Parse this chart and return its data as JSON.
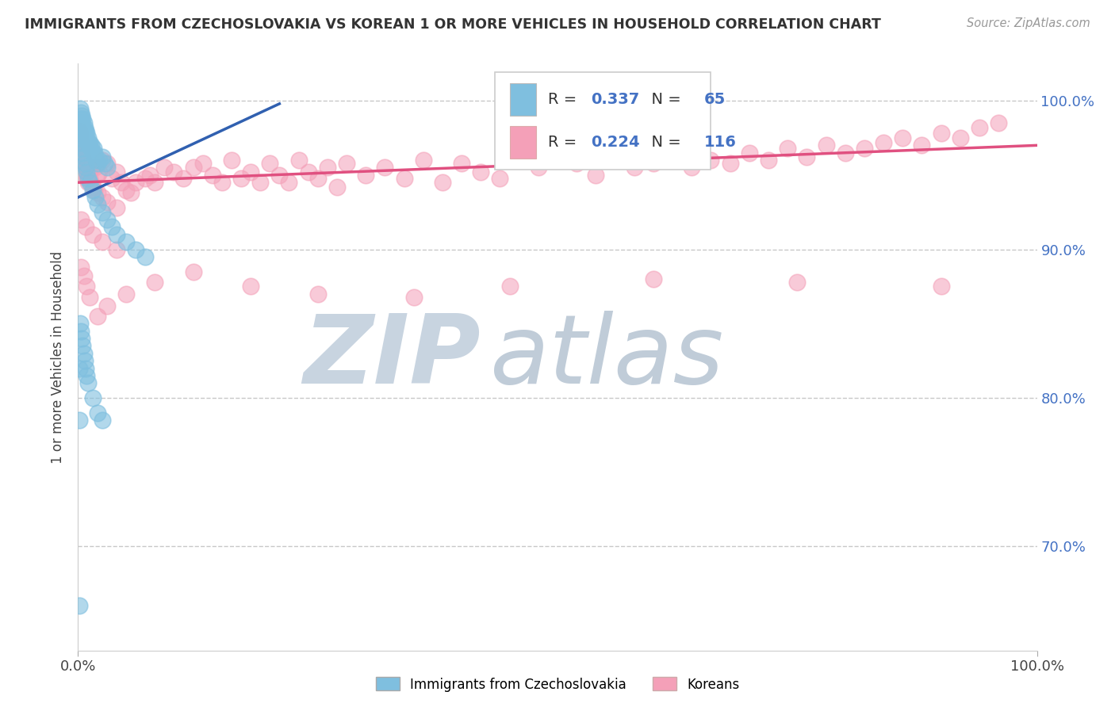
{
  "title": "IMMIGRANTS FROM CZECHOSLOVAKIA VS KOREAN 1 OR MORE VEHICLES IN HOUSEHOLD CORRELATION CHART",
  "source": "Source: ZipAtlas.com",
  "ylabel": "1 or more Vehicles in Household",
  "xlim": [
    0.0,
    1.0
  ],
  "ylim": [
    0.63,
    1.025
  ],
  "yticks": [
    0.7,
    0.8,
    0.9,
    1.0
  ],
  "ytick_labels": [
    "70.0%",
    "80.0%",
    "90.0%",
    "100.0%"
  ],
  "xticks": [
    0.0,
    1.0
  ],
  "xtick_labels": [
    "0.0%",
    "100.0%"
  ],
  "legend_labels": [
    "Immigrants from Czechoslovakia",
    "Koreans"
  ],
  "blue_color": "#7fbfdf",
  "pink_color": "#f4a0b8",
  "blue_line_color": "#3060b0",
  "pink_line_color": "#e05080",
  "blue_R": 0.337,
  "blue_N": 65,
  "pink_R": 0.224,
  "pink_N": 116,
  "watermark_zip": "ZIP",
  "watermark_atlas": "atlas",
  "watermark_color_zip": "#c8d4e0",
  "watermark_color_atlas": "#c0ccd8",
  "grid_color": "#c8c8c8",
  "background_color": "#ffffff",
  "blue_scatter_x": [
    0.002,
    0.003,
    0.003,
    0.004,
    0.004,
    0.005,
    0.005,
    0.006,
    0.006,
    0.007,
    0.007,
    0.008,
    0.008,
    0.009,
    0.01,
    0.01,
    0.011,
    0.012,
    0.013,
    0.014,
    0.015,
    0.016,
    0.017,
    0.018,
    0.019,
    0.02,
    0.022,
    0.025,
    0.028,
    0.03,
    0.002,
    0.003,
    0.004,
    0.005,
    0.006,
    0.007,
    0.008,
    0.009,
    0.01,
    0.012,
    0.015,
    0.018,
    0.02,
    0.025,
    0.03,
    0.035,
    0.04,
    0.05,
    0.06,
    0.07,
    0.002,
    0.003,
    0.004,
    0.005,
    0.006,
    0.007,
    0.008,
    0.009,
    0.01,
    0.015,
    0.02,
    0.025,
    0.001,
    0.001,
    0.001
  ],
  "blue_scatter_y": [
    0.995,
    0.992,
    0.988,
    0.99,
    0.985,
    0.988,
    0.982,
    0.985,
    0.98,
    0.982,
    0.978,
    0.98,
    0.975,
    0.978,
    0.975,
    0.972,
    0.97,
    0.972,
    0.968,
    0.97,
    0.965,
    0.968,
    0.965,
    0.962,
    0.96,
    0.958,
    0.96,
    0.962,
    0.958,
    0.955,
    0.975,
    0.972,
    0.968,
    0.965,
    0.962,
    0.958,
    0.955,
    0.952,
    0.948,
    0.945,
    0.94,
    0.935,
    0.93,
    0.925,
    0.92,
    0.915,
    0.91,
    0.905,
    0.9,
    0.895,
    0.85,
    0.845,
    0.84,
    0.835,
    0.83,
    0.825,
    0.82,
    0.815,
    0.81,
    0.8,
    0.79,
    0.785,
    0.82,
    0.785,
    0.66
  ],
  "pink_scatter_x": [
    0.001,
    0.002,
    0.002,
    0.003,
    0.003,
    0.004,
    0.004,
    0.005,
    0.005,
    0.006,
    0.006,
    0.007,
    0.007,
    0.008,
    0.008,
    0.009,
    0.01,
    0.01,
    0.011,
    0.012,
    0.013,
    0.015,
    0.015,
    0.017,
    0.018,
    0.02,
    0.02,
    0.022,
    0.025,
    0.025,
    0.03,
    0.03,
    0.035,
    0.04,
    0.04,
    0.045,
    0.05,
    0.055,
    0.06,
    0.07,
    0.075,
    0.08,
    0.09,
    0.1,
    0.11,
    0.12,
    0.13,
    0.14,
    0.15,
    0.16,
    0.17,
    0.18,
    0.19,
    0.2,
    0.21,
    0.22,
    0.23,
    0.24,
    0.25,
    0.26,
    0.27,
    0.28,
    0.3,
    0.32,
    0.34,
    0.36,
    0.38,
    0.4,
    0.42,
    0.44,
    0.46,
    0.48,
    0.5,
    0.52,
    0.54,
    0.56,
    0.58,
    0.6,
    0.62,
    0.64,
    0.66,
    0.68,
    0.7,
    0.72,
    0.74,
    0.76,
    0.78,
    0.8,
    0.82,
    0.84,
    0.86,
    0.88,
    0.9,
    0.92,
    0.94,
    0.96,
    0.003,
    0.006,
    0.009,
    0.012,
    0.02,
    0.03,
    0.05,
    0.08,
    0.12,
    0.18,
    0.25,
    0.35,
    0.45,
    0.6,
    0.75,
    0.9,
    0.003,
    0.008,
    0.015,
    0.025,
    0.04
  ],
  "pink_scatter_y": [
    0.98,
    0.978,
    0.975,
    0.972,
    0.97,
    0.968,
    0.965,
    0.962,
    0.96,
    0.958,
    0.955,
    0.958,
    0.952,
    0.95,
    0.955,
    0.948,
    0.95,
    0.945,
    0.952,
    0.948,
    0.945,
    0.955,
    0.942,
    0.94,
    0.955,
    0.95,
    0.938,
    0.952,
    0.96,
    0.935,
    0.958,
    0.932,
    0.948,
    0.952,
    0.928,
    0.945,
    0.94,
    0.938,
    0.945,
    0.948,
    0.95,
    0.945,
    0.955,
    0.952,
    0.948,
    0.955,
    0.958,
    0.95,
    0.945,
    0.96,
    0.948,
    0.952,
    0.945,
    0.958,
    0.95,
    0.945,
    0.96,
    0.952,
    0.948,
    0.955,
    0.942,
    0.958,
    0.95,
    0.955,
    0.948,
    0.96,
    0.945,
    0.958,
    0.952,
    0.948,
    0.96,
    0.955,
    0.962,
    0.958,
    0.95,
    0.965,
    0.955,
    0.958,
    0.962,
    0.955,
    0.96,
    0.958,
    0.965,
    0.96,
    0.968,
    0.962,
    0.97,
    0.965,
    0.968,
    0.972,
    0.975,
    0.97,
    0.978,
    0.975,
    0.982,
    0.985,
    0.888,
    0.882,
    0.875,
    0.868,
    0.855,
    0.862,
    0.87,
    0.878,
    0.885,
    0.875,
    0.87,
    0.868,
    0.875,
    0.88,
    0.878,
    0.875,
    0.92,
    0.915,
    0.91,
    0.905,
    0.9
  ],
  "blue_line_x0": 0.0,
  "blue_line_x1": 0.21,
  "blue_line_y0": 0.935,
  "blue_line_y1": 0.998,
  "pink_line_x0": 0.0,
  "pink_line_x1": 1.0,
  "pink_line_y0": 0.945,
  "pink_line_y1": 0.97
}
